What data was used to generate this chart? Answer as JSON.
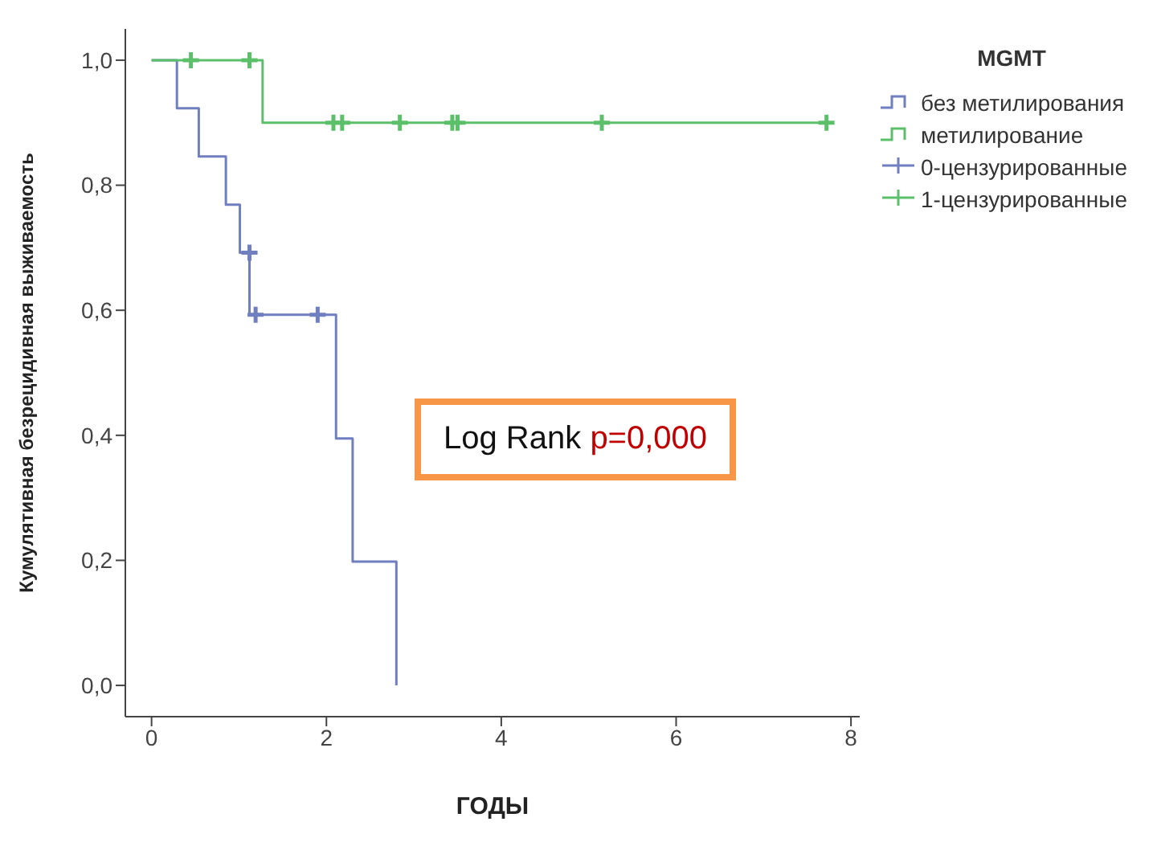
{
  "chart_data": {
    "type": "step",
    "xlabel": "ГОДЫ",
    "ylabel": "Кумулятивная безрецидивная выживаемость",
    "legend_title": "MGMT",
    "legend": "top right",
    "xlim": [
      -0.3,
      8.1
    ],
    "xticks": [
      0,
      2,
      4,
      6,
      8
    ],
    "ylim": [
      -0.05,
      1.05
    ],
    "yticks": [
      {
        "value": 0,
        "label": "0,0"
      },
      {
        "value": 0.2,
        "label": "0,2"
      },
      {
        "value": 0.4,
        "label": "0,4"
      },
      {
        "value": 0.6,
        "label": "0,6"
      },
      {
        "value": 0.8,
        "label": "0,8"
      },
      {
        "value": 1,
        "label": "1,0"
      }
    ],
    "series": [
      {
        "name": "без метилирования",
        "color": "#6f7fc0",
        "x": [
          0,
          0.29,
          0.54,
          0.85,
          1.01,
          1.12,
          2.11,
          2.3,
          2.8
        ],
        "values": [
          1,
          0.923,
          0.846,
          0.769,
          0.692,
          0.593,
          0.395,
          0.198,
          0
        ]
      },
      {
        "name": "метилирование",
        "color": "#5cc06a",
        "x": [
          0,
          1.27,
          7.8
        ],
        "values": [
          1,
          0.9,
          0.9
        ]
      },
      {
        "name": "0-цензурированные",
        "type": "scatter",
        "marker": "cross",
        "color": "#6f7fc0",
        "x": [
          1.12,
          1.19,
          1.9
        ],
        "values": [
          0.692,
          0.593,
          0.593
        ]
      },
      {
        "name": "1-цензурированные",
        "type": "scatter",
        "marker": "cross",
        "color": "#5cc06a",
        "x": [
          0.45,
          1.12,
          2.08,
          2.18,
          2.84,
          3.44,
          3.5,
          5.15,
          7.72
        ],
        "values": [
          1,
          1,
          0.9,
          0.9,
          0.9,
          0.9,
          0.9,
          0.9,
          0.9
        ]
      }
    ],
    "annotations": [
      "Log Rank",
      "p=0,000"
    ]
  }
}
